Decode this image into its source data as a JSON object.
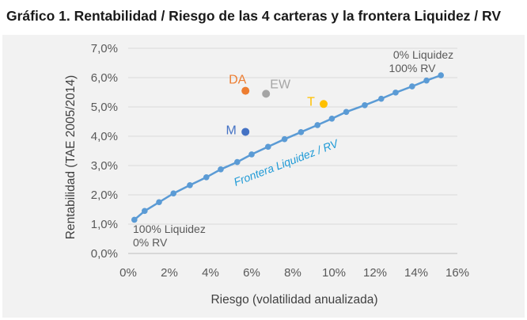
{
  "chart_data": {
    "type": "scatter",
    "title": "Gráfico 1. Rentabilidad / Riesgo de las 4 carteras y la frontera Liquidez / RV",
    "xlabel": "Riesgo (volatilidad anualizada)",
    "ylabel": "Rentabilidad (TAE 2005/2014)",
    "xlim": [
      0,
      16
    ],
    "ylim": [
      0,
      7
    ],
    "x_ticks": [
      "0%",
      "2%",
      "4%",
      "6%",
      "8%",
      "10%",
      "12%",
      "14%",
      "16%"
    ],
    "y_ticks": [
      "0,0%",
      "1,0%",
      "2,0%",
      "3,0%",
      "4,0%",
      "5,0%",
      "6,0%",
      "7,0%"
    ],
    "grid": "horizontal",
    "series": [
      {
        "name": "Frontera Liquidez / RV",
        "type": "line",
        "color": "#5b9bd5",
        "x": [
          0.3,
          0.8,
          1.5,
          2.2,
          3.0,
          3.8,
          4.5,
          5.3,
          6.0,
          6.8,
          7.6,
          8.4,
          9.2,
          9.9,
          10.6,
          11.5,
          12.3,
          13.0,
          13.8,
          14.5,
          15.2
        ],
        "y": [
          1.15,
          1.45,
          1.75,
          2.05,
          2.33,
          2.6,
          2.87,
          3.12,
          3.38,
          3.64,
          3.9,
          4.14,
          4.38,
          4.6,
          4.83,
          5.06,
          5.28,
          5.49,
          5.7,
          5.9,
          6.08
        ]
      }
    ],
    "portfolios": [
      {
        "name": "DA",
        "x": 5.7,
        "y": 5.55,
        "color": "#ed7d31"
      },
      {
        "name": "EW",
        "x": 6.7,
        "y": 5.45,
        "color": "#a5a5a5"
      },
      {
        "name": "T",
        "x": 9.5,
        "y": 5.1,
        "color": "#ffc000"
      },
      {
        "name": "M",
        "x": 5.7,
        "y": 4.15,
        "color": "#4472c4"
      }
    ],
    "annotations": {
      "top_line1": "0% Liquidez",
      "top_line2": "100% RV",
      "bottom_line1": "100% Liquidez",
      "bottom_line2": "0% RV",
      "frontier_label": "Frontera Liquidez / RV"
    }
  }
}
